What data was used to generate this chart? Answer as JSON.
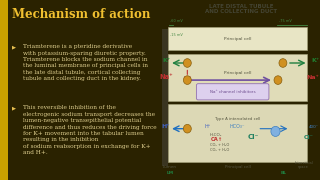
{
  "bg_left": "#2a2200",
  "bg_right": "#f0ebe0",
  "title_text": "Mechanism of action",
  "title_color": "#f0c030",
  "title_fontsize": 8.5,
  "bullet_color": "#e8c050",
  "text_color": "#e0d090",
  "text_fontsize": 4.2,
  "bullet1": "Triamterene is a pteridine derivative\nwith potassium-sparing diuretic property.\nTriamterene blocks the sodium channel in\nthe luminal membrane of principal cells in\nthe late distal tubule, cortical collecting\ntubule and collecting duct in the kidney.",
  "bullet2": "This reversible inhibition of the\nelectrogenic sodium transport decreases the\nlumen-negative transepithelial potential\ndifference and thus reduces the driving force\nfor K+ movement into the tabular lumen\nresulting in the inhibition\nof sodium reabsorption in exchange for K+\nand H+.",
  "diagram_title": "LATE DISTAL TUBULE\nAND COLLECTING DUCT",
  "diagram_title_color": "#444433",
  "diagram_title_fontsize": 4.0,
  "diagram_bg": "#f0ebe0",
  "left_strip_color": "#c8a000",
  "na_color": "#c03030",
  "k_color": "#208030",
  "h_color": "#4060c0",
  "cl_color": "#208060",
  "hco3_color": "#4080c0",
  "ca_color": "#c03030",
  "arrow_purple": "#7050a0",
  "arrow_blue": "#2070c0",
  "arrow_green": "#208040",
  "arrow_red": "#c03030",
  "circle_color": "#c88820",
  "cell_fill": "#e8e4c0",
  "cell_edge": "#aaa880",
  "inhib_fill": "#ddd0ee",
  "inhib_edge": "#9070b0",
  "inhib_text": "#705090",
  "label_color": "#555540",
  "mv_color": "#448844",
  "lm_color": "#208040",
  "bl_color": "#208040"
}
